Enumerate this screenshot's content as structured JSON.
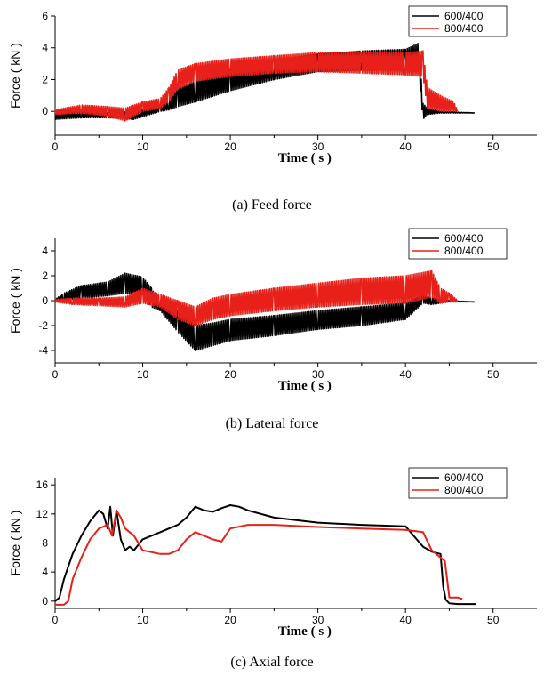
{
  "chart_data": [
    {
      "type": "line",
      "caption": "(a) Feed force",
      "xlabel": "Time ( s )",
      "ylabel": "Force ( kN )",
      "xlim": [
        0,
        55
      ],
      "ylim": [
        -1.5,
        6
      ],
      "xticks": [
        0,
        10,
        20,
        30,
        40,
        50
      ],
      "yticks": [
        0,
        2,
        4,
        6
      ],
      "legend_position": "top-right",
      "style": "band",
      "series": [
        {
          "name": "600/400",
          "color": "#000000",
          "x": [
            0,
            3,
            6,
            9,
            12,
            13,
            14,
            16,
            20,
            25,
            30,
            35,
            40,
            41.5,
            42,
            42.5,
            44,
            48
          ],
          "lo": [
            -0.5,
            -0.4,
            -0.4,
            -0.5,
            0.0,
            0.1,
            0.3,
            0.6,
            1.3,
            2.0,
            2.5,
            2.6,
            2.6,
            2.5,
            -0.5,
            -0.2,
            -0.1,
            -0.1
          ],
          "hi": [
            -0.1,
            0.0,
            -0.1,
            0.0,
            0.4,
            0.8,
            1.5,
            2.0,
            2.6,
            3.2,
            3.6,
            3.8,
            3.9,
            4.3,
            0.5,
            0.2,
            0.0,
            -0.1
          ]
        },
        {
          "name": "800/400",
          "color": "#e8201a",
          "x": [
            0,
            3,
            6,
            8,
            10,
            12,
            13,
            14,
            16,
            20,
            25,
            30,
            35,
            40,
            42,
            42.5,
            44,
            45.5,
            46
          ],
          "lo": [
            -0.2,
            -0.1,
            -0.3,
            -0.6,
            0.0,
            0.2,
            0.6,
            1.4,
            1.9,
            2.2,
            2.4,
            2.5,
            2.4,
            2.3,
            2.2,
            0.2,
            0.0,
            0.0,
            0.0
          ],
          "hi": [
            0.1,
            0.4,
            0.3,
            0.2,
            0.6,
            0.8,
            1.5,
            2.6,
            3.0,
            3.3,
            3.5,
            3.7,
            3.7,
            3.7,
            3.8,
            1.5,
            1.0,
            0.6,
            0.0
          ]
        }
      ]
    },
    {
      "type": "line",
      "caption": "(b) Lateral force",
      "xlabel": "Time ( s )",
      "ylabel": "Force ( kN )",
      "xlim": [
        0,
        55
      ],
      "ylim": [
        -5,
        5
      ],
      "xticks": [
        0,
        10,
        20,
        30,
        40,
        50
      ],
      "yticks": [
        -4,
        -2,
        0,
        2,
        4
      ],
      "legend_position": "top-right",
      "style": "band",
      "series": [
        {
          "name": "600/400",
          "color": "#000000",
          "x": [
            0,
            1,
            3,
            6,
            8,
            10,
            11,
            12,
            14,
            16,
            18,
            20,
            25,
            30,
            35,
            40,
            42,
            43,
            45,
            48
          ],
          "lo": [
            0.0,
            0.0,
            0.2,
            0.4,
            0.6,
            0.5,
            -0.5,
            -0.8,
            -2.5,
            -4.0,
            -3.6,
            -3.2,
            -2.8,
            -2.3,
            -2.0,
            -1.5,
            -0.2,
            -0.3,
            -0.1,
            -0.1
          ],
          "hi": [
            0.1,
            0.6,
            1.2,
            1.5,
            2.2,
            1.9,
            1.0,
            -0.2,
            -0.8,
            -2.0,
            -1.8,
            -1.5,
            -1.2,
            -0.8,
            -0.5,
            -0.2,
            0.5,
            0.3,
            0.0,
            -0.1
          ]
        },
        {
          "name": "800/400",
          "color": "#e8201a",
          "x": [
            0,
            2,
            5,
            8,
            10,
            12,
            14,
            16,
            18,
            20,
            25,
            30,
            35,
            40,
            43,
            44,
            45,
            46
          ],
          "lo": [
            -0.1,
            -0.3,
            -0.4,
            -0.5,
            -0.2,
            -0.5,
            -1.5,
            -2.0,
            -1.5,
            -1.2,
            -0.8,
            -0.5,
            -0.3,
            -0.2,
            0.3,
            -0.2,
            -0.1,
            -0.1
          ],
          "hi": [
            0.1,
            0.2,
            0.2,
            0.3,
            1.0,
            0.5,
            0.0,
            -0.5,
            0.2,
            0.5,
            1.0,
            1.4,
            1.8,
            2.0,
            2.4,
            1.0,
            0.6,
            0.0
          ]
        }
      ]
    },
    {
      "type": "line",
      "caption": "(c) Axial force",
      "xlabel": "Time ( s )",
      "ylabel": "Force ( kN )",
      "xlim": [
        0,
        55
      ],
      "ylim": [
        -1,
        17
      ],
      "xticks": [
        0,
        10,
        20,
        30,
        40,
        50
      ],
      "yticks": [
        0,
        4,
        8,
        12,
        16
      ],
      "legend_position": "top-right",
      "style": "line",
      "series": [
        {
          "name": "600/400",
          "color": "#000000",
          "x": [
            0,
            0.5,
            1,
            2,
            3,
            4,
            5,
            5.5,
            6,
            6.3,
            6.6,
            7,
            7.5,
            8,
            8.5,
            9,
            10,
            12,
            13,
            14,
            15,
            16,
            17,
            18,
            19,
            20,
            21,
            22,
            25,
            30,
            35,
            40,
            42,
            43,
            44,
            44.3,
            44.6,
            45,
            46,
            48
          ],
          "y": [
            0,
            0.5,
            3,
            6.5,
            9,
            11,
            12.5,
            12,
            10,
            13,
            9,
            12.5,
            8.5,
            7,
            7.5,
            7,
            8.5,
            9.5,
            10,
            10.5,
            11.5,
            13,
            12.5,
            12.3,
            12.8,
            13.2,
            13,
            12.5,
            11.5,
            10.8,
            10.5,
            10.3,
            7.5,
            6.8,
            6.5,
            2,
            0.2,
            -0.3,
            -0.4,
            -0.4
          ]
        },
        {
          "name": "800/400",
          "color": "#e8201a",
          "x": [
            0,
            1,
            1.5,
            2,
            3,
            4,
            5,
            6,
            6.5,
            7,
            7.5,
            8,
            8.5,
            9,
            10,
            12,
            13,
            14,
            15,
            16,
            17,
            18,
            19,
            20,
            22,
            25,
            30,
            35,
            40,
            42,
            43,
            44,
            44.5,
            45,
            46,
            46.5
          ],
          "y": [
            -0.5,
            -0.5,
            0,
            3,
            6,
            8.5,
            10,
            10.5,
            9,
            12.5,
            11.5,
            10,
            9.5,
            9,
            7,
            6.5,
            6.5,
            7,
            8.5,
            9.5,
            9,
            8.5,
            8.2,
            10,
            10.5,
            10.5,
            10.2,
            10,
            9.8,
            9.5,
            7,
            6,
            5.5,
            0.5,
            0.5,
            0.3
          ]
        }
      ]
    }
  ]
}
